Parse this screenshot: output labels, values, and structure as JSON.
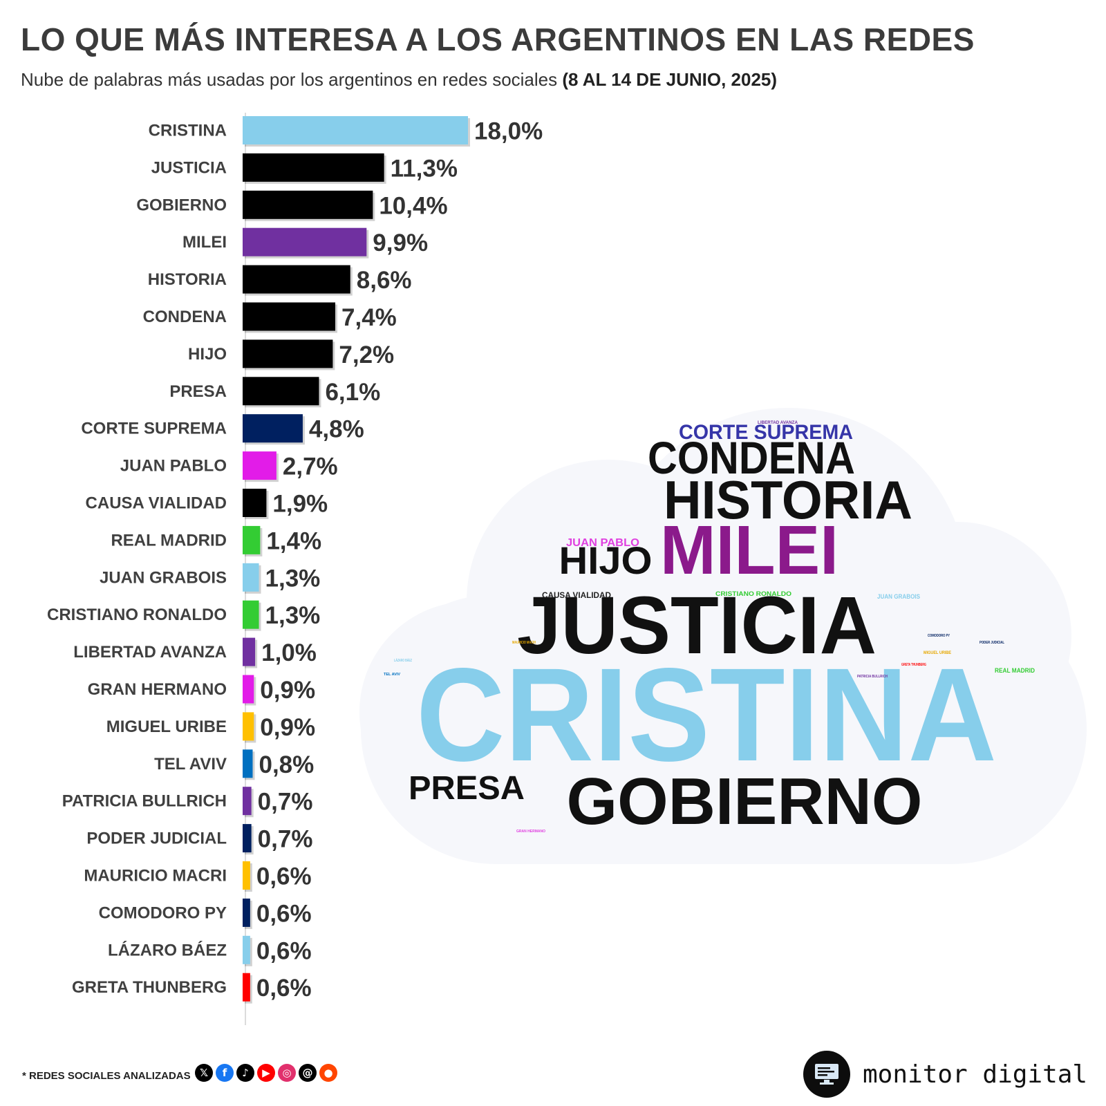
{
  "header": {
    "title": "LO QUE MÁS INTERESA A LOS ARGENTINOS EN LAS REDES",
    "subtitle": "Nube de palabras más usadas por los argentinos en redes sociales",
    "date_range": "(8 AL 14 DE JUNIO, 2025)"
  },
  "chart_data": {
    "type": "bar",
    "orientation": "horizontal",
    "categories": [
      "CRISTINA",
      "JUSTICIA",
      "GOBIERNO",
      "MILEI",
      "HISTORIA",
      "CONDENA",
      "HIJO",
      "PRESA",
      "CORTE SUPREMA",
      "JUAN PABLO",
      "CAUSA VIALIDAD",
      "REAL MADRID",
      "JUAN GRABOIS",
      "CRISTIANO RONALDO",
      "LIBERTAD AVANZA",
      "GRAN HERMANO",
      "MIGUEL URIBE",
      "TEL AVIV",
      "PATRICIA BULLRICH",
      "PODER JUDICIAL",
      "MAURICIO MACRI",
      "COMODORO PY",
      "LÁZARO BÁEZ",
      "GRETA THUNBERG"
    ],
    "values": [
      18.0,
      11.3,
      10.4,
      9.9,
      8.6,
      7.4,
      7.2,
      6.1,
      4.8,
      2.7,
      1.9,
      1.4,
      1.3,
      1.3,
      1.0,
      0.9,
      0.9,
      0.8,
      0.7,
      0.7,
      0.6,
      0.6,
      0.6,
      0.6
    ],
    "value_labels": [
      "18,0%",
      "11,3%",
      "10,4%",
      "9,9%",
      "8,6%",
      "7,4%",
      "7,2%",
      "6,1%",
      "4,8%",
      "2,7%",
      "1,9%",
      "1,4%",
      "1,3%",
      "1,3%",
      "1,0%",
      "0,9%",
      "0,9%",
      "0,8%",
      "0,7%",
      "0,7%",
      "0,6%",
      "0,6%",
      "0,6%",
      "0,6%"
    ],
    "colors": [
      "#87CEEB",
      "#000000",
      "#000000",
      "#7030A0",
      "#000000",
      "#000000",
      "#000000",
      "#000000",
      "#002060",
      "#E21CE8",
      "#000000",
      "#33CC33",
      "#87CEEB",
      "#33CC33",
      "#7030A0",
      "#E21CE8",
      "#FFC000",
      "#0070C0",
      "#7030A0",
      "#002060",
      "#FFC000",
      "#002060",
      "#87CEEB",
      "#FF0000"
    ],
    "unit": "%",
    "xlim": [
      0,
      18.0
    ],
    "grid": false,
    "legend": "none"
  },
  "word_cloud": {
    "words": [
      {
        "text": "CRISTINA",
        "color": "#87CEEB"
      },
      {
        "text": "JUSTICIA",
        "color": "#111111"
      },
      {
        "text": "GOBIERNO",
        "color": "#111111"
      },
      {
        "text": "MILEI",
        "color": "#8B1A8B"
      },
      {
        "text": "HISTORIA",
        "color": "#111111"
      },
      {
        "text": "CONDENA",
        "color": "#111111"
      },
      {
        "text": "HIJO",
        "color": "#111111"
      },
      {
        "text": "PRESA",
        "color": "#111111"
      },
      {
        "text": "CORTE SUPREMA",
        "color": "#3535A8"
      },
      {
        "text": "JUAN PABLO",
        "color": "#E040E0"
      },
      {
        "text": "CAUSA VIALIDAD",
        "color": "#222222"
      },
      {
        "text": "CRISTIANO RONALDO",
        "color": "#33CC33"
      },
      {
        "text": "JUAN GRABOIS",
        "color": "#87CEEB"
      },
      {
        "text": "REAL MADRID",
        "color": "#33CC33"
      },
      {
        "text": "LIBERTAD AVANZA",
        "color": "#7030A0"
      },
      {
        "text": "GRAN HERMANO",
        "color": "#E040E0"
      },
      {
        "text": "MIGUEL URIBE",
        "color": "#E6A800"
      },
      {
        "text": "TEL AVIV",
        "color": "#0070C0"
      },
      {
        "text": "PATRICIA BULLRICH",
        "color": "#7030A0"
      },
      {
        "text": "PODER JUDICIAL",
        "color": "#002060"
      },
      {
        "text": "MAURICIO MACRI",
        "color": "#E6A800"
      },
      {
        "text": "COMODORO PY",
        "color": "#002060"
      },
      {
        "text": "LÁZARO BÁEZ",
        "color": "#87CEEB"
      },
      {
        "text": "GRETA THUNBERG",
        "color": "#FF0000"
      }
    ]
  },
  "footer": {
    "note": "* REDES SOCIALES ANALIZADAS",
    "networks": [
      {
        "icon": "x-icon",
        "glyph": "𝕏",
        "color": "#000000"
      },
      {
        "icon": "facebook-icon",
        "glyph": "f",
        "color": "#1877F2"
      },
      {
        "icon": "tiktok-icon",
        "glyph": "♪",
        "color": "#000000"
      },
      {
        "icon": "youtube-icon",
        "glyph": "▶",
        "color": "#FF0000"
      },
      {
        "icon": "instagram-icon",
        "glyph": "◎",
        "color": "#E1306C"
      },
      {
        "icon": "threads-icon",
        "glyph": "@",
        "color": "#000000"
      },
      {
        "icon": "reddit-icon",
        "glyph": "●",
        "color": "#FF4500"
      }
    ],
    "brand": "monitor digital"
  }
}
